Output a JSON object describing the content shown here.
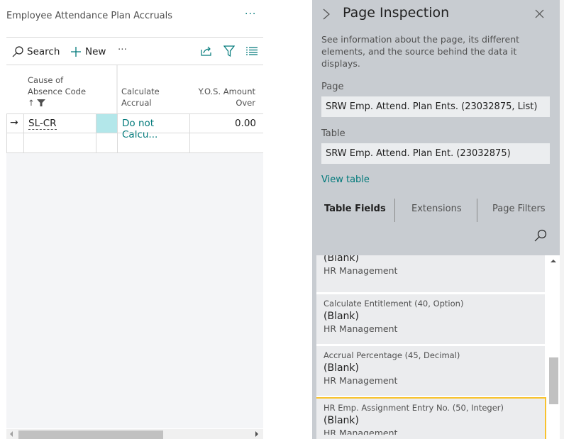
{
  "list": {
    "title": "Employee Attendance Plan Accruals",
    "more_label": "···",
    "toolbar": {
      "search": "Search",
      "new": "New",
      "more": "···"
    },
    "columns": {
      "cause_line1": "Cause of",
      "cause_line2": "Absence Code",
      "calc_line1": "Calculate",
      "calc_line2": "Accrual",
      "yos_line1": "Y.O.S. Amount",
      "yos_line2": "Over",
      "sort_glyph": "↑"
    },
    "rows": [
      {
        "cause": "SL-CR",
        "calculate": "Do not Calcu...",
        "yos": "0.00"
      }
    ],
    "selection_color": "#b3e7ea"
  },
  "inspection": {
    "title": "Page Inspection",
    "description": "See information about the page, its different elements, and the source behind the data it displays.",
    "page_label": "Page",
    "page_value": "SRW Emp. Attend. Plan Ents. (23032875, List)",
    "table_label": "Table",
    "table_value": "SRW Emp. Attend. Plan Ent. (23032875)",
    "view_table": "View table",
    "tabs": [
      {
        "label": "Table Fields",
        "active": true
      },
      {
        "label": "Extensions"
      },
      {
        "label": "Page Filters"
      }
    ],
    "fields": [
      {
        "name": "",
        "value": "(Blank)",
        "source": "HR Management"
      },
      {
        "name": "Calculate Entitlement (40, Option)",
        "value": "(Blank)",
        "source": "HR Management"
      },
      {
        "name": "Accrual Percentage (45, Decimal)",
        "value": "(Blank)",
        "source": "HR Management"
      },
      {
        "name": "HR Emp. Assignment Entry No. (50, Integer)",
        "value": "(Blank)",
        "source": "HR Management",
        "selected": true
      }
    ],
    "highlight_color": "#f8c22d"
  }
}
